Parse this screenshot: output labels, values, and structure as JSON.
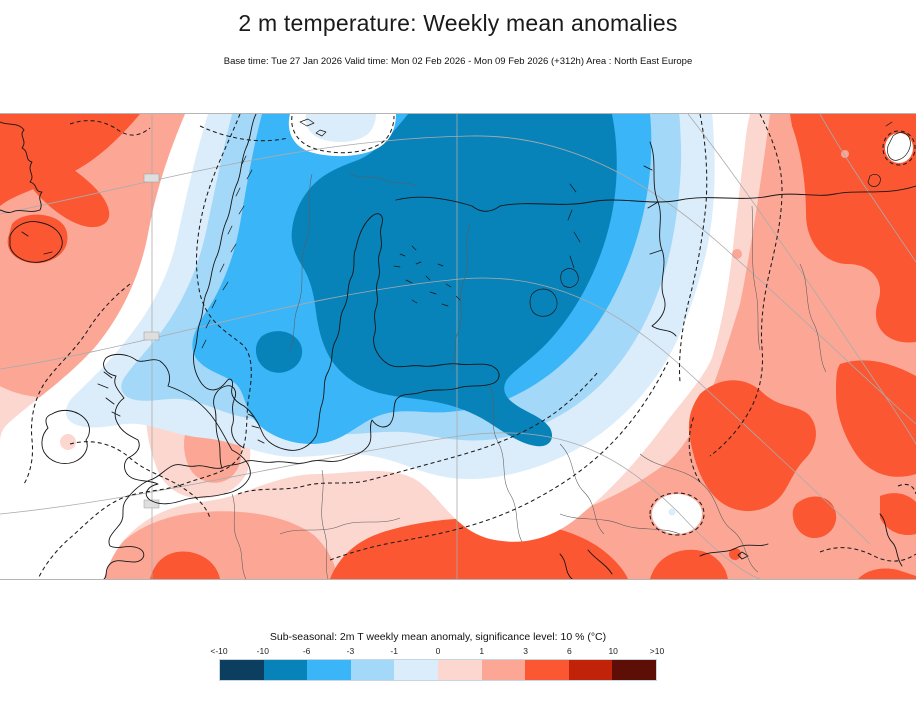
{
  "header": {
    "title": "2 m temperature: Weekly mean anomalies",
    "subtitle": "Base time: Tue 27 Jan 2026 Valid time: Mon 02 Feb 2026 - Mon 09 Feb 2026 (+312h) Area : North East Europe"
  },
  "legend": {
    "title": "Sub-seasonal: 2m T weekly mean anomaly, significance level: 10 % (°C)",
    "tick_labels": [
      "<-10",
      "-10",
      "-6",
      "-3",
      "-1",
      "0",
      "1",
      "3",
      "6",
      "10",
      ">10"
    ],
    "colors": [
      "#0c3f5f",
      "#0883b9",
      "#3ab6f8",
      "#a3d8f8",
      "#dbedfb",
      "#fcd7d0",
      "#fca795",
      "#fa5732",
      "#c02308",
      "#5d0f07"
    ]
  },
  "map": {
    "area": "North East Europe",
    "variable": "2m temperature weekly mean anomaly",
    "units": "°C",
    "colors": {
      "graticule": "#ababab",
      "coastline": "#161616",
      "country_border": "#5c5c5c",
      "significance_contour": "#1c1c1c",
      "frame": "#b5b5b5",
      "non_significant": "#ffffff"
    }
  }
}
